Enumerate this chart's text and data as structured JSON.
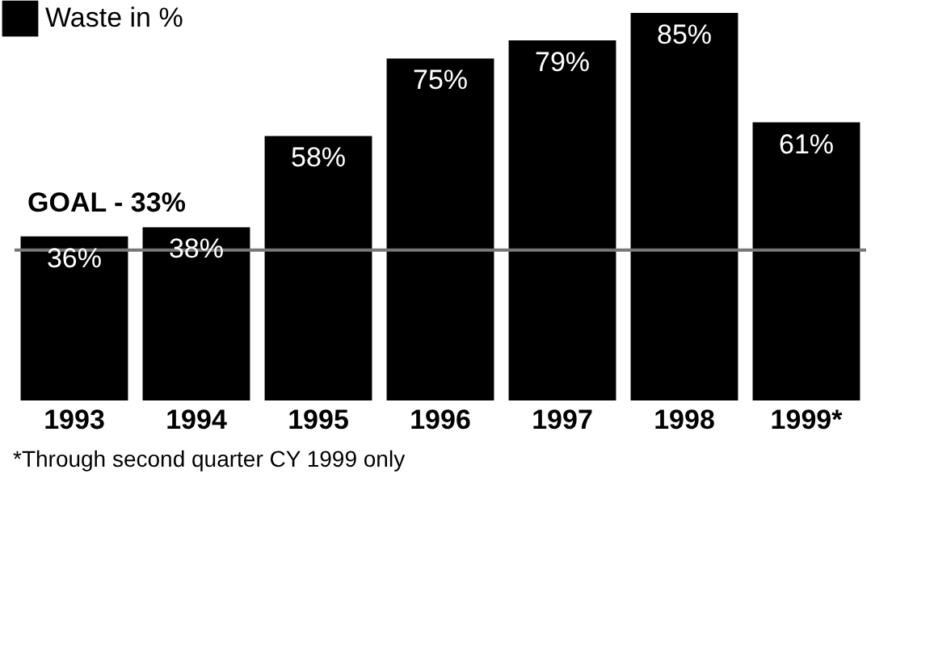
{
  "chart_data": {
    "type": "bar",
    "categories": [
      "1993",
      "1994",
      "1995",
      "1996",
      "1997",
      "1998",
      "1999*"
    ],
    "series": [
      {
        "name": "Waste in %",
        "color": "#000000",
        "values": [
          36,
          38,
          58,
          75,
          79,
          85,
          61
        ],
        "value_labels": [
          "36%",
          "38%",
          "58%",
          "75%",
          "79%",
          "85%",
          "61%"
        ]
      }
    ],
    "ref_lines": [
      {
        "axis": "y",
        "value": 33,
        "label": "GOAL - 33%",
        "color": "#777777",
        "line_style": "solid"
      }
    ],
    "annotations": [
      "*Through second quarter CY 1999 only"
    ],
    "legend": "top left",
    "grid": false,
    "tick_labels": "x"
  }
}
